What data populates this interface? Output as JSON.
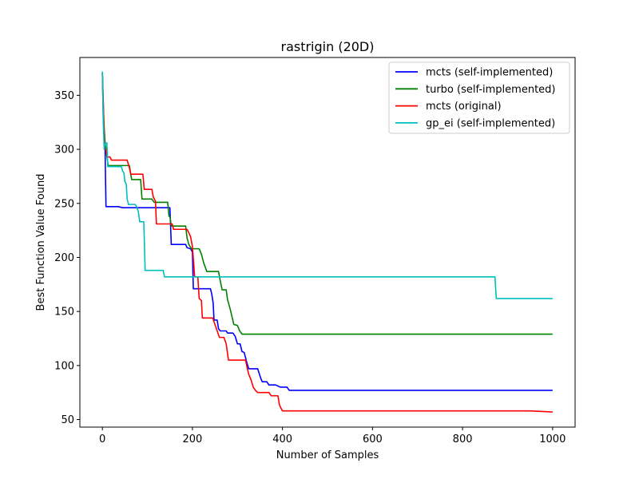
{
  "chart_data": {
    "type": "line",
    "title": "rastrigin (20D)",
    "xlabel": "Number of Samples",
    "ylabel": "Best Function Value Found",
    "xlim": [
      -50,
      1050
    ],
    "ylim": [
      43,
      385
    ],
    "xticks": [
      0,
      200,
      400,
      600,
      800,
      1000
    ],
    "yticks": [
      50,
      100,
      150,
      200,
      250,
      300,
      350
    ],
    "grid": false,
    "legend_position": "top-right",
    "series": [
      {
        "name": "mcts (self-implemented)",
        "color": "#0000ff",
        "points": [
          [
            0,
            370
          ],
          [
            2,
            330
          ],
          [
            4,
            310
          ],
          [
            6,
            300
          ],
          [
            8,
            247
          ],
          [
            35,
            247
          ],
          [
            45,
            246
          ],
          [
            150,
            246
          ],
          [
            153,
            212
          ],
          [
            185,
            212
          ],
          [
            188,
            209
          ],
          [
            196,
            208
          ],
          [
            200,
            205
          ],
          [
            202,
            171
          ],
          [
            240,
            171
          ],
          [
            243,
            166
          ],
          [
            246,
            158
          ],
          [
            248,
            142
          ],
          [
            255,
            142
          ],
          [
            258,
            134
          ],
          [
            262,
            132
          ],
          [
            275,
            132
          ],
          [
            278,
            130
          ],
          [
            290,
            130
          ],
          [
            295,
            127
          ],
          [
            300,
            120
          ],
          [
            306,
            120
          ],
          [
            310,
            113
          ],
          [
            315,
            112
          ],
          [
            320,
            104
          ],
          [
            325,
            97
          ],
          [
            345,
            97
          ],
          [
            348,
            93
          ],
          [
            352,
            88
          ],
          [
            355,
            85
          ],
          [
            365,
            85
          ],
          [
            370,
            82
          ],
          [
            385,
            82
          ],
          [
            395,
            80
          ],
          [
            410,
            80
          ],
          [
            415,
            77
          ],
          [
            1000,
            77
          ]
        ]
      },
      {
        "name": "turbo (self-implemented)",
        "color": "#008000",
        "points": [
          [
            0,
            371
          ],
          [
            2,
            340
          ],
          [
            4,
            320
          ],
          [
            6,
            306
          ],
          [
            8,
            300
          ],
          [
            10,
            293
          ],
          [
            13,
            285
          ],
          [
            60,
            285
          ],
          [
            65,
            272
          ],
          [
            85,
            272
          ],
          [
            88,
            254
          ],
          [
            110,
            254
          ],
          [
            115,
            251
          ],
          [
            145,
            251
          ],
          [
            148,
            238
          ],
          [
            150,
            238
          ],
          [
            153,
            229
          ],
          [
            185,
            229
          ],
          [
            188,
            218
          ],
          [
            192,
            212
          ],
          [
            198,
            208
          ],
          [
            215,
            208
          ],
          [
            220,
            203
          ],
          [
            225,
            195
          ],
          [
            232,
            187
          ],
          [
            258,
            187
          ],
          [
            262,
            178
          ],
          [
            266,
            170
          ],
          [
            275,
            170
          ],
          [
            278,
            161
          ],
          [
            284,
            152
          ],
          [
            288,
            145
          ],
          [
            292,
            138
          ],
          [
            300,
            137
          ],
          [
            305,
            132
          ],
          [
            310,
            129
          ],
          [
            1000,
            129
          ]
        ]
      },
      {
        "name": "mcts (original)",
        "color": "#ff0000",
        "points": [
          [
            0,
            370
          ],
          [
            2,
            345
          ],
          [
            3,
            325
          ],
          [
            4,
            310
          ],
          [
            6,
            300
          ],
          [
            8,
            299
          ],
          [
            11,
            293
          ],
          [
            17,
            293
          ],
          [
            20,
            290
          ],
          [
            55,
            290
          ],
          [
            60,
            283
          ],
          [
            63,
            277
          ],
          [
            90,
            277
          ],
          [
            93,
            263
          ],
          [
            110,
            263
          ],
          [
            113,
            256
          ],
          [
            118,
            252
          ],
          [
            120,
            231
          ],
          [
            155,
            231
          ],
          [
            158,
            226
          ],
          [
            188,
            226
          ],
          [
            193,
            222
          ],
          [
            196,
            219
          ],
          [
            200,
            210
          ],
          [
            205,
            182
          ],
          [
            212,
            182
          ],
          [
            215,
            162
          ],
          [
            220,
            160
          ],
          [
            222,
            144
          ],
          [
            245,
            144
          ],
          [
            250,
            138
          ],
          [
            255,
            132
          ],
          [
            260,
            126
          ],
          [
            270,
            126
          ],
          [
            275,
            120
          ],
          [
            280,
            105
          ],
          [
            318,
            105
          ],
          [
            322,
            97
          ],
          [
            325,
            92
          ],
          [
            330,
            87
          ],
          [
            335,
            80
          ],
          [
            340,
            77
          ],
          [
            345,
            75
          ],
          [
            370,
            75
          ],
          [
            375,
            72
          ],
          [
            390,
            72
          ],
          [
            393,
            64
          ],
          [
            396,
            61
          ],
          [
            400,
            58
          ],
          [
            730,
            58
          ],
          [
            950,
            58
          ],
          [
            1000,
            57
          ]
        ]
      },
      {
        "name": "gp_ei (self-implemented)",
        "color": "#00bfbf",
        "points": [
          [
            0,
            372
          ],
          [
            2,
            325
          ],
          [
            4,
            300
          ],
          [
            6,
            305
          ],
          [
            10,
            306
          ],
          [
            12,
            284
          ],
          [
            40,
            284
          ],
          [
            42,
            284
          ],
          [
            45,
            280
          ],
          [
            48,
            278
          ],
          [
            50,
            270
          ],
          [
            53,
            268
          ],
          [
            55,
            254
          ],
          [
            58,
            249
          ],
          [
            73,
            249
          ],
          [
            76,
            247
          ],
          [
            80,
            242
          ],
          [
            83,
            233
          ],
          [
            92,
            233
          ],
          [
            95,
            188
          ],
          [
            135,
            188
          ],
          [
            138,
            182
          ],
          [
            872,
            182
          ],
          [
            875,
            162
          ],
          [
            1000,
            162
          ]
        ]
      }
    ]
  }
}
